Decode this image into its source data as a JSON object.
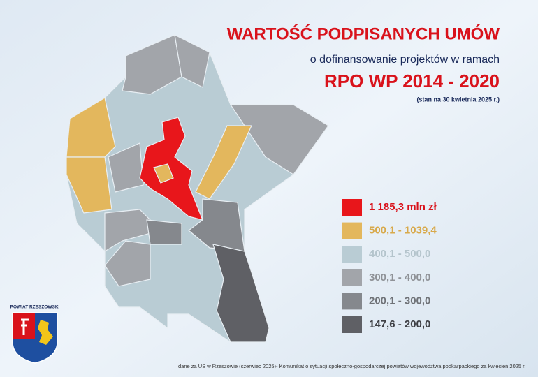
{
  "header": {
    "title": "WARTOŚĆ PODPISANYCH UMÓW",
    "subtitle": "o dofinansowanie projektów w ramach",
    "program": "RPO WP 2014 - 2020",
    "date_note": "(stan na 30 kwietnia 2025 r.)"
  },
  "legend": [
    {
      "label": "1 185,3 mln zł",
      "color": "#e8161b",
      "text_color": "#d9121b"
    },
    {
      "label": "500,1 - 1039,4",
      "color": "#e3b75d",
      "text_color": "#d8a94a"
    },
    {
      "label": "400,1 - 500,0",
      "color": "#b9ccd4",
      "text_color": "#b4c4cc"
    },
    {
      "label": "300,1 - 400,0",
      "color": "#a2a5aa",
      "text_color": "#8f9297"
    },
    {
      "label": "200,1 - 300,0",
      "color": "#85888d",
      "text_color": "#6f7277"
    },
    {
      "label": "147,6 - 200,0",
      "color": "#5f6065",
      "text_color": "#3f4045"
    }
  ],
  "emblem": {
    "label": "POWIAT RZESZOWSKI"
  },
  "footnote": "dane za US w Rzeszowie (czerwiec 2025)- Komunikat o sytuacji społeczno-gospodarczej powiatów województwa podkarpackiego za kwiecień 2025 r."
}
